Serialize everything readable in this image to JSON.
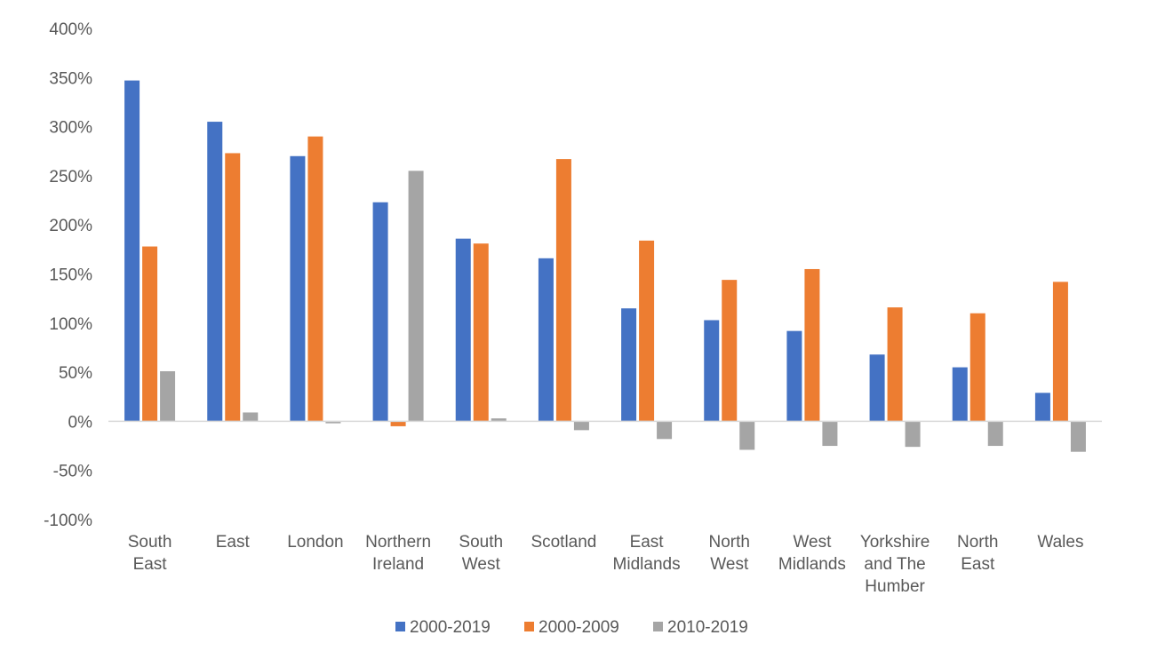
{
  "chart_data": {
    "type": "bar",
    "categories": [
      [
        "South",
        "East"
      ],
      [
        "East"
      ],
      [
        "London"
      ],
      [
        "Northern",
        "Ireland"
      ],
      [
        "South",
        "West"
      ],
      [
        "Scotland"
      ],
      [
        "East",
        "Midlands"
      ],
      [
        "North",
        "West"
      ],
      [
        "West",
        "Midlands"
      ],
      [
        "Yorkshire",
        "and The",
        "Humber"
      ],
      [
        "North",
        "East"
      ],
      [
        "Wales"
      ]
    ],
    "series": [
      {
        "name": "2000-2019",
        "color": "#4472C4",
        "values": [
          347,
          305,
          270,
          223,
          186,
          166,
          115,
          103,
          92,
          68,
          55,
          29
        ]
      },
      {
        "name": "2000-2009",
        "color": "#ED7D31",
        "values": [
          178,
          273,
          290,
          -5,
          181,
          267,
          184,
          144,
          155,
          116,
          110,
          142
        ]
      },
      {
        "name": "2010-2019",
        "color": "#A5A5A5",
        "values": [
          51,
          9,
          -2,
          255,
          3,
          -9,
          -18,
          -29,
          -25,
          -26,
          -25,
          -31
        ]
      }
    ],
    "ylim": [
      -100,
      400
    ],
    "yticks": [
      -100,
      -50,
      0,
      50,
      100,
      150,
      200,
      250,
      300,
      350,
      400
    ],
    "ytick_labels": [
      "-100%",
      "-50%",
      "0%",
      "50%",
      "100%",
      "150%",
      "200%",
      "250%",
      "300%",
      "350%",
      "400%"
    ],
    "title": "",
    "xlabel": "",
    "ylabel": "",
    "grid": false,
    "legend_position": "bottom-center"
  }
}
